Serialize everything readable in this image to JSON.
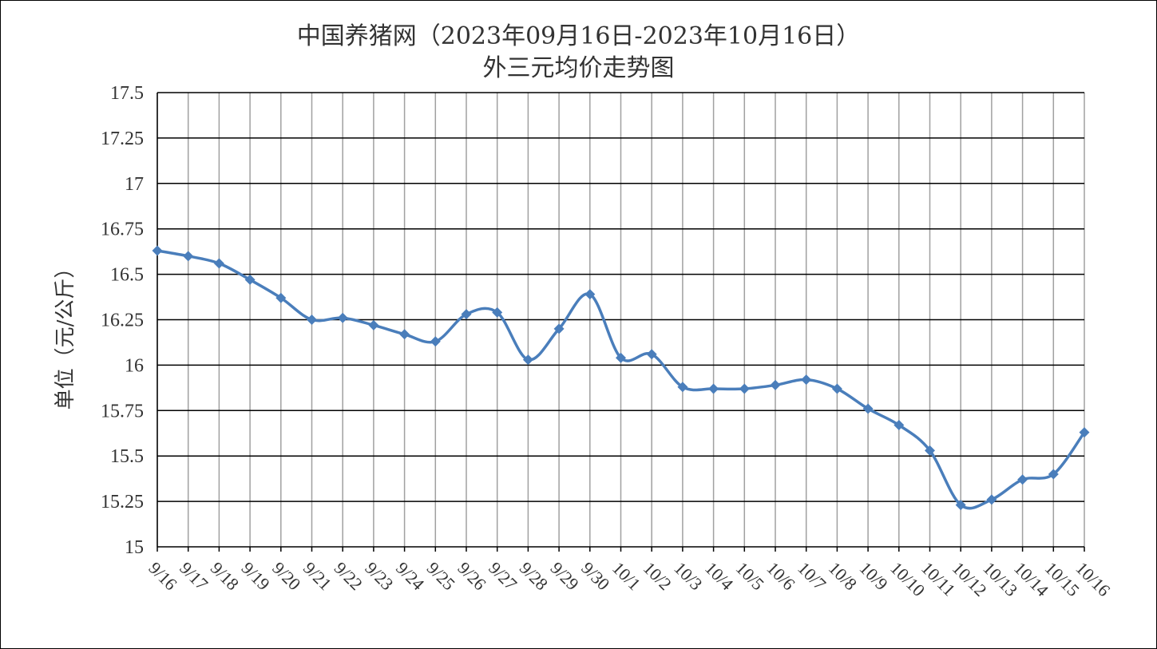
{
  "chart_data": {
    "type": "line",
    "title": "中国养猪网（2023年09月16日-2023年10月16日）",
    "subtitle": "外三元均价走势图",
    "xlabel": "",
    "ylabel": "单位（元/公斤）",
    "ylim": [
      15,
      17.5
    ],
    "y_ticks": [
      "15",
      "15.25",
      "15.5",
      "15.75",
      "16",
      "16.25",
      "16.5",
      "16.75",
      "17",
      "17.25",
      "17.5"
    ],
    "grid": true,
    "legend": "none",
    "color": "#4a7ebb",
    "categories": [
      "9/16",
      "9/17",
      "9/18",
      "9/19",
      "9/20",
      "9/21",
      "9/22",
      "9/23",
      "9/24",
      "9/25",
      "9/26",
      "9/27",
      "9/28",
      "9/29",
      "9/30",
      "10/1",
      "10/2",
      "10/3",
      "10/4",
      "10/5",
      "10/6",
      "10/7",
      "10/8",
      "10/9",
      "10/10",
      "10/11",
      "10/12",
      "10/13",
      "10/14",
      "10/15",
      "10/16"
    ],
    "values": [
      16.63,
      16.6,
      16.56,
      16.47,
      16.37,
      16.25,
      16.26,
      16.22,
      16.17,
      16.13,
      16.28,
      16.29,
      16.03,
      16.2,
      16.39,
      16.04,
      16.06,
      15.88,
      15.87,
      15.87,
      15.89,
      15.92,
      15.87,
      15.76,
      15.67,
      15.53,
      15.23,
      15.26,
      15.37,
      15.4,
      15.63
    ]
  }
}
